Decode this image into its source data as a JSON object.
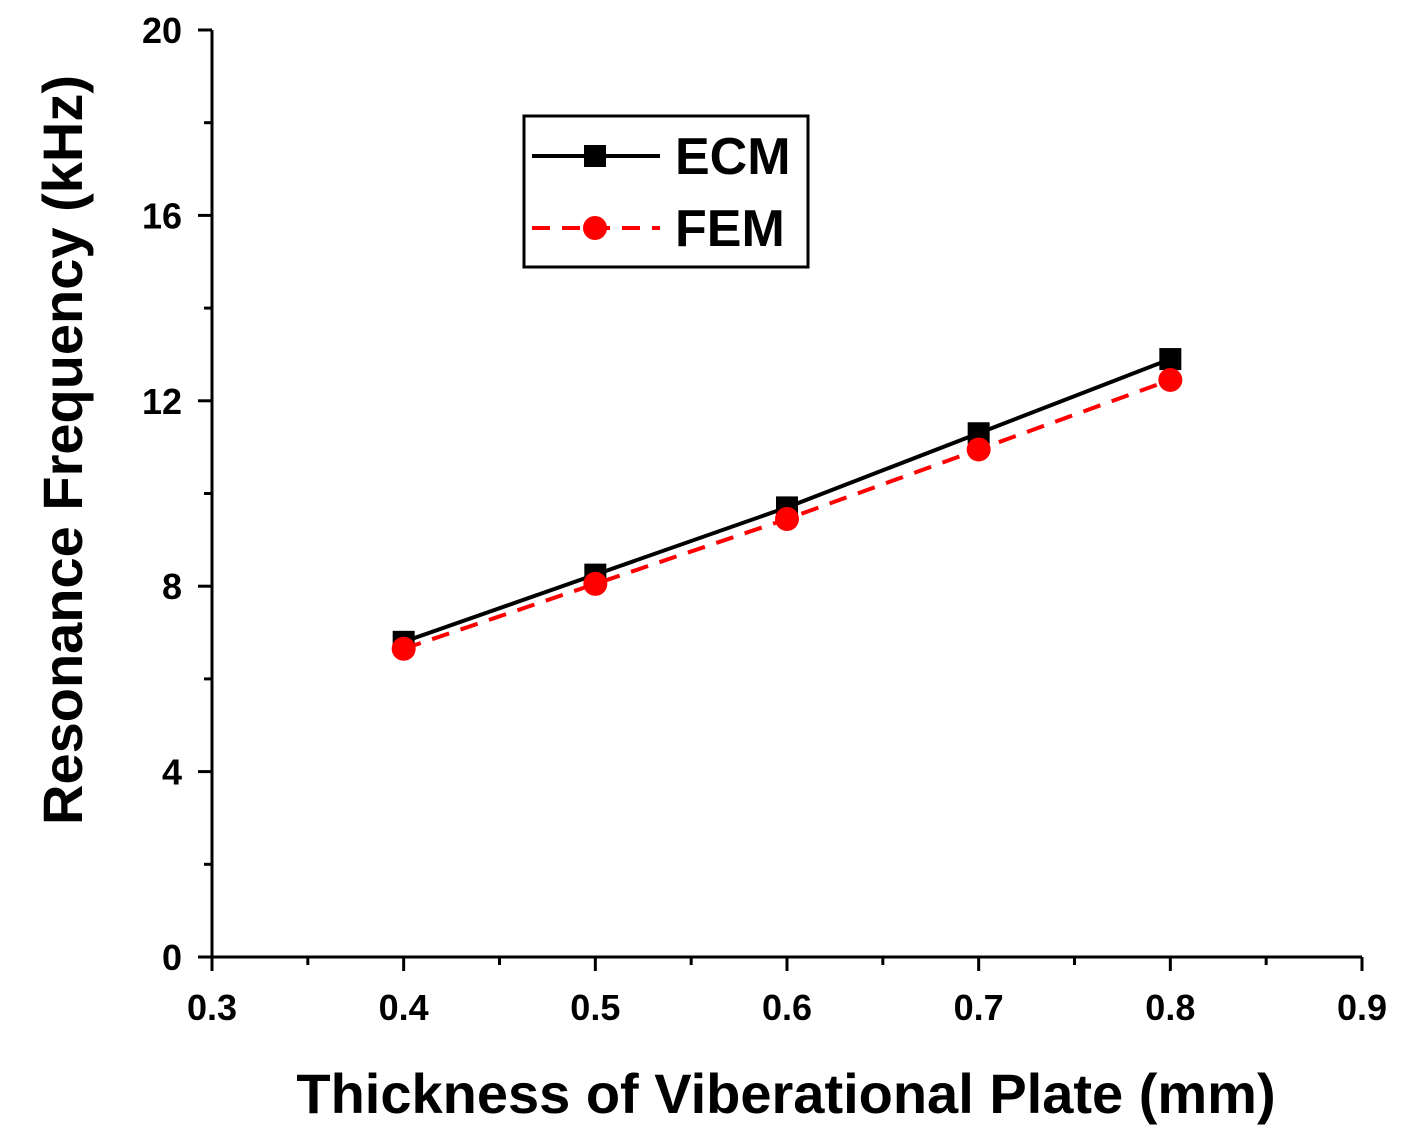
{
  "chart_data": {
    "type": "line",
    "title": "",
    "xlabel": "Thickness of Viberational Plate (mm)",
    "ylabel": "Resonance Frequency (kHz)",
    "xlim": [
      0.3,
      0.9
    ],
    "ylim": [
      0,
      20
    ],
    "x_major_ticks": [
      0.3,
      0.4,
      0.5,
      0.6,
      0.7,
      0.8,
      0.9
    ],
    "x_tick_labels": [
      "0.3",
      "0.4",
      "0.5",
      "0.6",
      "0.7",
      "0.8",
      "0.9"
    ],
    "x_minor_ticks": [
      0.35,
      0.45,
      0.55,
      0.65,
      0.75,
      0.85
    ],
    "y_major_ticks": [
      0,
      4,
      8,
      12,
      16,
      20
    ],
    "y_tick_labels": [
      "0",
      "4",
      "8",
      "12",
      "16",
      "20"
    ],
    "y_minor_ticks": [
      2,
      6,
      10,
      14,
      18
    ],
    "grid": false,
    "legend_position": "top-center",
    "x": [
      0.4,
      0.5,
      0.6,
      0.7,
      0.8
    ],
    "series": [
      {
        "name": "ECM",
        "values": [
          6.8,
          8.25,
          9.7,
          11.3,
          12.9
        ],
        "color": "#000000",
        "line_style": "solid",
        "marker": "square"
      },
      {
        "name": "FEM",
        "values": [
          6.65,
          8.05,
          9.45,
          10.95,
          12.45
        ],
        "color": "#ff0000",
        "line_style": "dashed",
        "marker": "circle"
      }
    ]
  }
}
